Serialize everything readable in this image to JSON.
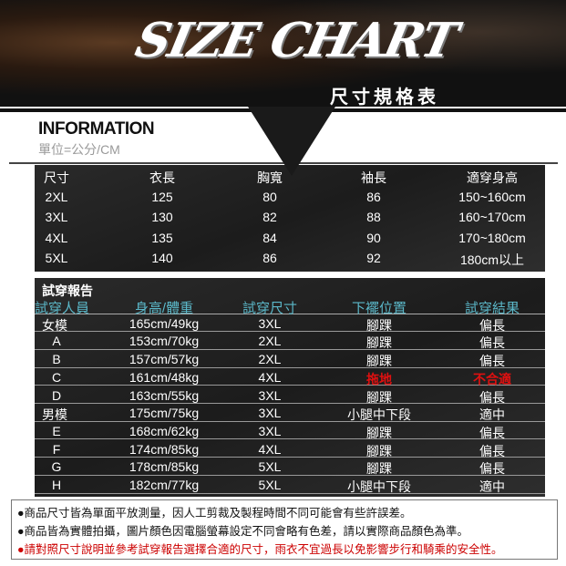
{
  "header": {
    "logo_text": "SIZE CHART",
    "subtitle": "尺寸規格表"
  },
  "info": {
    "title": "INFORMATION",
    "unit": "單位=公分/CM"
  },
  "size_table": {
    "headers": [
      "尺寸",
      "衣長",
      "胸寬",
      "袖長",
      "適穿身高"
    ],
    "rows": [
      [
        "2XL",
        "125",
        "80",
        "86",
        "150~160cm"
      ],
      [
        "3XL",
        "130",
        "82",
        "88",
        "160~170cm"
      ],
      [
        "4XL",
        "135",
        "84",
        "90",
        "170~180cm"
      ],
      [
        "5XL",
        "140",
        "86",
        "92",
        "180cm以上"
      ]
    ]
  },
  "tryon": {
    "title": "試穿報告",
    "headers": [
      "試穿人員",
      "身高/體重",
      "試穿尺寸",
      "下襬位置",
      "試穿結果"
    ],
    "header_color": "#5bb8c9",
    "highlight_color": "#e01010",
    "rows": [
      [
        "女模",
        "165cm/49kg",
        "3XL",
        "腳踝",
        "偏長"
      ],
      [
        "A",
        "153cm/70kg",
        "2XL",
        "腳踝",
        "偏長"
      ],
      [
        "B",
        "157cm/57kg",
        "2XL",
        "腳踝",
        "偏長"
      ],
      [
        "C",
        "161cm/48kg",
        "4XL",
        "拖地",
        "不合適"
      ],
      [
        "D",
        "163cm/55kg",
        "3XL",
        "腳踝",
        "偏長"
      ],
      [
        "男模",
        "175cm/75kg",
        "3XL",
        "小腿中下段",
        "適中"
      ],
      [
        "E",
        "168cm/62kg",
        "3XL",
        "腳踝",
        "偏長"
      ],
      [
        "F",
        "174cm/85kg",
        "4XL",
        "腳踝",
        "偏長"
      ],
      [
        "G",
        "178cm/85kg",
        "5XL",
        "腳踝",
        "偏長"
      ],
      [
        "H",
        "182cm/77kg",
        "5XL",
        "小腿中下段",
        "適中"
      ]
    ]
  },
  "notes": [
    "●商品尺寸皆為單面平放測量，因人工剪裁及製程時間不同可能會有些許誤差。",
    "●商品皆為實體拍攝，圖片顏色因電腦螢幕設定不同會略有色差，請以實際商品顏色為準。",
    "●請對照尺寸說明並參考試穿報告選擇合適的尺寸，雨衣不宜過長以免影響步行和騎乘的安全性。"
  ]
}
